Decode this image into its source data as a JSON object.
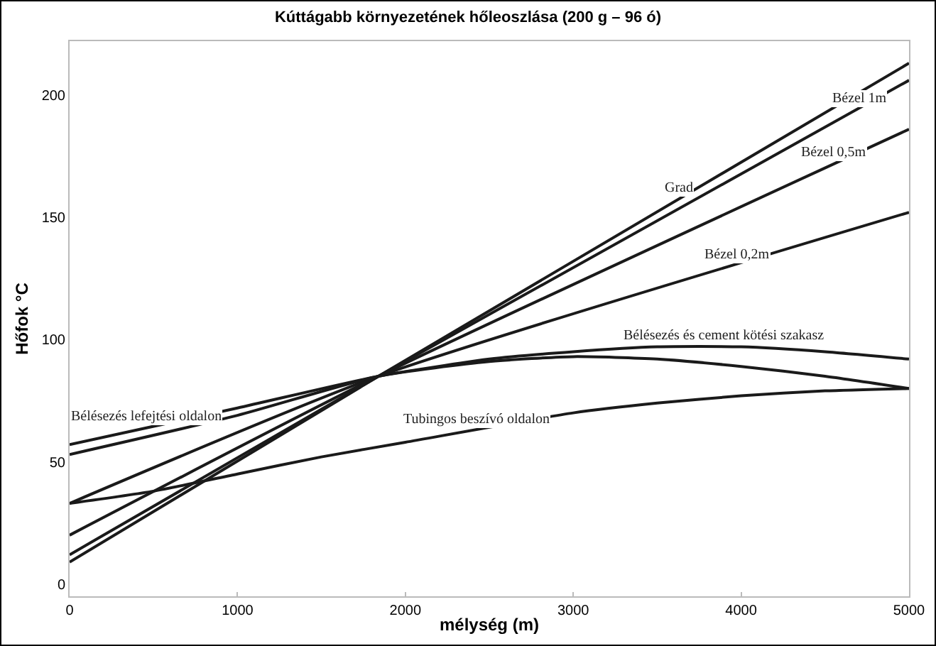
{
  "chart_data": {
    "type": "line",
    "title": "Kúttágabb környezetének hőleoszlása (200 g – 96 ó)",
    "xlabel": "mélység (m)",
    "ylabel": "Hőfok °C",
    "xlim": [
      0,
      5000
    ],
    "xticks": [
      0,
      1000,
      2000,
      3000,
      4000,
      5000
    ],
    "ylim": [
      -5,
      222
    ],
    "yticks": [
      0,
      50,
      100,
      150,
      200
    ],
    "grid": false,
    "marker": "none",
    "line_style": "solid",
    "series": [
      {
        "color": "#1a1a1a",
        "x": [
          0,
          1840,
          5000
        ],
        "values": [
          9,
          85,
          213
        ]
      },
      {
        "color": "#1a1a1a",
        "x": [
          0,
          1840,
          5000
        ],
        "values": [
          12,
          85,
          206
        ]
      },
      {
        "color": "#1a1a1a",
        "x": [
          0,
          1840,
          5000
        ],
        "values": [
          20,
          85,
          186
        ]
      },
      {
        "color": "#1a1a1a",
        "x": [
          0,
          1840,
          5000
        ],
        "values": [
          33,
          85,
          152
        ]
      },
      {
        "color": "#1a1a1a",
        "x": [
          0,
          1000,
          1840,
          2500,
          3000,
          3500,
          4000,
          4500,
          5000
        ],
        "values": [
          57,
          72,
          85,
          92,
          95,
          97,
          97,
          95,
          92
        ]
      },
      {
        "color": "#1a1a1a",
        "x": [
          0,
          1000,
          1840,
          2500,
          3000,
          3500,
          4000,
          4500,
          5000
        ],
        "values": [
          53,
          69,
          85,
          91,
          93,
          92,
          89,
          85,
          80
        ]
      },
      {
        "color": "#1a1a1a",
        "x": [
          0,
          500,
          1000,
          1500,
          2000,
          3000,
          3500,
          4000,
          4500,
          5000
        ],
        "values": [
          33,
          38,
          45,
          52,
          58,
          70,
          74,
          77,
          79,
          80
        ]
      }
    ],
    "annotations": [
      {
        "text": "Grad",
        "x": 3630,
        "y": 157.5
      },
      {
        "text": "Bézel 1m",
        "x": 4700,
        "y": 194
      },
      {
        "text": "Bézel 0,5m",
        "x": 4550,
        "y": 172
      },
      {
        "text": "Bézel 0,2m",
        "x": 3980,
        "y": 130
      },
      {
        "text": "Bélésezés és cement kötési szakasz",
        "x": 3900,
        "y": 97
      },
      {
        "text": "Bélésezés lefejtési oldalon",
        "x": 460,
        "y": 64
      },
      {
        "text": "Tubingos beszívó oldalon",
        "x": 2420,
        "y": 63
      }
    ]
  }
}
